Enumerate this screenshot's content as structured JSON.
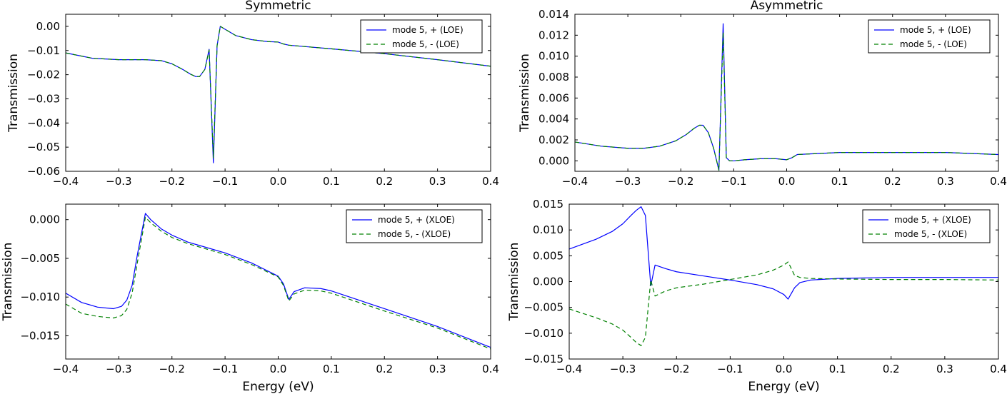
{
  "colors": {
    "plus": "#0000ff",
    "minus": "#008000",
    "axes": "#000000",
    "background": "#ffffff"
  },
  "chart_data": [
    {
      "id": "top-left",
      "type": "line",
      "title": "Symmetric",
      "xlabel": "",
      "ylabel": "Transmission",
      "xlim": [
        -0.4,
        0.4
      ],
      "ylim": [
        -0.06,
        0.005
      ],
      "xticks": [
        -0.4,
        -0.3,
        -0.2,
        -0.1,
        0.0,
        0.1,
        0.2,
        0.3,
        0.4
      ],
      "xtick_labels": [
        "−0.4",
        "−0.3",
        "−0.2",
        "−0.1",
        "0.0",
        "0.1",
        "0.2",
        "0.3",
        "0.4"
      ],
      "yticks": [
        -0.06,
        -0.05,
        -0.04,
        -0.03,
        -0.02,
        -0.01,
        0.0
      ],
      "ytick_labels": [
        "−0.06",
        "−0.05",
        "−0.04",
        "−0.03",
        "−0.02",
        "−0.01",
        "0.00"
      ],
      "grid": false,
      "legend_position": "top-right",
      "series": [
        {
          "name": "mode 5, + (LOE)",
          "style": "solid",
          "color": "#0000ff",
          "x": [
            -0.4,
            -0.35,
            -0.3,
            -0.25,
            -0.22,
            -0.2,
            -0.18,
            -0.165,
            -0.155,
            -0.148,
            -0.138,
            -0.13,
            -0.122,
            -0.115,
            -0.109,
            -0.1,
            -0.08,
            -0.05,
            -0.02,
            0.0,
            0.01,
            0.02,
            0.1,
            0.2,
            0.3,
            0.4
          ],
          "y": [
            -0.011,
            -0.0132,
            -0.0138,
            -0.0138,
            -0.0142,
            -0.0155,
            -0.0178,
            -0.0198,
            -0.0208,
            -0.0208,
            -0.0178,
            -0.0095,
            -0.0565,
            -0.008,
            0.0,
            -0.0012,
            -0.0038,
            -0.0055,
            -0.0063,
            -0.0065,
            -0.0073,
            -0.0078,
            -0.0093,
            -0.0113,
            -0.0138,
            -0.0165
          ]
        },
        {
          "name": "mode 5, - (LOE)",
          "style": "dashed",
          "color": "#008000",
          "x": [
            -0.4,
            -0.35,
            -0.3,
            -0.25,
            -0.22,
            -0.2,
            -0.18,
            -0.165,
            -0.155,
            -0.148,
            -0.138,
            -0.13,
            -0.122,
            -0.115,
            -0.109,
            -0.1,
            -0.08,
            -0.05,
            -0.02,
            0.0,
            0.01,
            0.02,
            0.1,
            0.2,
            0.3,
            0.4
          ],
          "y": [
            -0.011,
            -0.0132,
            -0.0138,
            -0.0138,
            -0.0142,
            -0.0155,
            -0.0178,
            -0.0198,
            -0.0208,
            -0.0208,
            -0.0178,
            -0.0098,
            -0.0545,
            -0.008,
            0.0,
            -0.0012,
            -0.0038,
            -0.0055,
            -0.0063,
            -0.0065,
            -0.0073,
            -0.0078,
            -0.0093,
            -0.0113,
            -0.0138,
            -0.0165
          ]
        }
      ]
    },
    {
      "id": "top-right",
      "type": "line",
      "title": "Asymmetric",
      "xlabel": "",
      "ylabel": "Transmission",
      "xlim": [
        -0.4,
        0.4
      ],
      "ylim": [
        -0.001,
        0.014
      ],
      "xticks": [
        -0.4,
        -0.3,
        -0.2,
        -0.1,
        0.0,
        0.1,
        0.2,
        0.3,
        0.4
      ],
      "xtick_labels": [
        "−0.4",
        "−0.3",
        "−0.2",
        "−0.1",
        "0.0",
        "0.1",
        "0.2",
        "0.3",
        "0.4"
      ],
      "yticks": [
        0.0,
        0.002,
        0.004,
        0.006,
        0.008,
        0.01,
        0.012,
        0.014
      ],
      "ytick_labels": [
        "0.000",
        "0.002",
        "0.004",
        "0.006",
        "0.008",
        "0.010",
        "0.012",
        "0.014"
      ],
      "grid": false,
      "legend_position": "top-right",
      "series": [
        {
          "name": "mode 5, + (LOE)",
          "style": "solid",
          "color": "#0000ff",
          "x": [
            -0.4,
            -0.35,
            -0.3,
            -0.27,
            -0.24,
            -0.21,
            -0.19,
            -0.175,
            -0.165,
            -0.158,
            -0.148,
            -0.138,
            -0.128,
            -0.12,
            -0.114,
            -0.108,
            -0.1,
            -0.08,
            -0.05,
            -0.02,
            0.0,
            0.01,
            0.02,
            0.1,
            0.2,
            0.3,
            0.4
          ],
          "y": [
            0.0018,
            0.0014,
            0.0012,
            0.0012,
            0.0014,
            0.0019,
            0.0025,
            0.0031,
            0.0034,
            0.0034,
            0.0027,
            0.0012,
            -0.0009,
            0.0131,
            0.0003,
            0.0,
            0.0,
            0.0001,
            0.0002,
            0.0002,
            0.0001,
            0.0003,
            0.0006,
            0.0008,
            0.0008,
            0.0008,
            0.0006
          ]
        },
        {
          "name": "mode 5, - (LOE)",
          "style": "dashed",
          "color": "#008000",
          "x": [
            -0.4,
            -0.35,
            -0.3,
            -0.27,
            -0.24,
            -0.21,
            -0.19,
            -0.175,
            -0.165,
            -0.158,
            -0.148,
            -0.138,
            -0.128,
            -0.12,
            -0.114,
            -0.108,
            -0.1,
            -0.08,
            -0.05,
            -0.02,
            0.0,
            0.01,
            0.02,
            0.1,
            0.2,
            0.3,
            0.4
          ],
          "y": [
            0.0018,
            0.0014,
            0.0012,
            0.0012,
            0.0014,
            0.0019,
            0.0025,
            0.0031,
            0.0034,
            0.0034,
            0.0027,
            0.0012,
            -0.0009,
            0.0123,
            0.0003,
            0.0,
            0.0,
            0.0001,
            0.0002,
            0.0002,
            0.0001,
            0.0003,
            0.0006,
            0.0008,
            0.0008,
            0.0008,
            0.0006
          ]
        }
      ]
    },
    {
      "id": "bottom-left",
      "type": "line",
      "title": "",
      "xlabel": "Energy (eV)",
      "ylabel": "Transmission",
      "xlim": [
        -0.4,
        0.4
      ],
      "ylim": [
        -0.018,
        0.002
      ],
      "xticks": [
        -0.4,
        -0.3,
        -0.2,
        -0.1,
        0.0,
        0.1,
        0.2,
        0.3,
        0.4
      ],
      "xtick_labels": [
        "−0.4",
        "−0.3",
        "−0.2",
        "−0.1",
        "0.0",
        "0.1",
        "0.2",
        "0.3",
        "0.4"
      ],
      "yticks": [
        -0.015,
        -0.01,
        -0.005,
        0.0
      ],
      "ytick_labels": [
        "−0.015",
        "−0.010",
        "−0.005",
        "0.000"
      ],
      "grid": false,
      "legend_position": "top-right",
      "series": [
        {
          "name": "mode 5, + (XLOE)",
          "style": "solid",
          "color": "#0000ff",
          "x": [
            -0.4,
            -0.37,
            -0.34,
            -0.31,
            -0.295,
            -0.285,
            -0.275,
            -0.265,
            -0.25,
            -0.24,
            -0.22,
            -0.2,
            -0.17,
            -0.15,
            -0.1,
            -0.05,
            0.0,
            0.01,
            0.02,
            0.03,
            0.05,
            0.08,
            0.1,
            0.2,
            0.3,
            0.4
          ],
          "y": [
            -0.0095,
            -0.0107,
            -0.0113,
            -0.0115,
            -0.0112,
            -0.0104,
            -0.0085,
            -0.0045,
            0.0008,
            0.0,
            -0.0012,
            -0.002,
            -0.0029,
            -0.0033,
            -0.0043,
            -0.0056,
            -0.0073,
            -0.0083,
            -0.0103,
            -0.0093,
            -0.0088,
            -0.0089,
            -0.0092,
            -0.0115,
            -0.0138,
            -0.0165
          ]
        },
        {
          "name": "mode 5, - (XLOE)",
          "style": "dashed",
          "color": "#008000",
          "x": [
            -0.4,
            -0.37,
            -0.34,
            -0.31,
            -0.295,
            -0.285,
            -0.275,
            -0.265,
            -0.25,
            -0.24,
            -0.22,
            -0.2,
            -0.17,
            -0.15,
            -0.1,
            -0.05,
            0.0,
            0.01,
            0.02,
            0.03,
            0.05,
            0.08,
            0.1,
            0.2,
            0.3,
            0.4
          ],
          "y": [
            -0.0109,
            -0.0121,
            -0.0125,
            -0.0127,
            -0.0124,
            -0.0116,
            -0.0095,
            -0.0055,
            0.0003,
            -0.0004,
            -0.0015,
            -0.0023,
            -0.0031,
            -0.0035,
            -0.0045,
            -0.0058,
            -0.0074,
            -0.0085,
            -0.0105,
            -0.0096,
            -0.0091,
            -0.0092,
            -0.0095,
            -0.0118,
            -0.014,
            -0.0167
          ]
        }
      ]
    },
    {
      "id": "bottom-right",
      "type": "line",
      "title": "",
      "xlabel": "Energy (eV)",
      "ylabel": "Transmission",
      "xlim": [
        -0.4,
        0.4
      ],
      "ylim": [
        -0.015,
        0.015
      ],
      "xticks": [
        -0.4,
        -0.3,
        -0.2,
        -0.1,
        0.0,
        0.1,
        0.2,
        0.3,
        0.4
      ],
      "xtick_labels": [
        "−0.4",
        "−0.3",
        "−0.2",
        "−0.1",
        "0.0",
        "0.1",
        "0.2",
        "0.3",
        "0.4"
      ],
      "yticks": [
        -0.015,
        -0.01,
        -0.005,
        0.0,
        0.005,
        0.01,
        0.015
      ],
      "ytick_labels": [
        "−0.015",
        "−0.010",
        "−0.005",
        "0.000",
        "0.005",
        "0.010",
        "0.015"
      ],
      "grid": false,
      "legend_position": "top-right",
      "series": [
        {
          "name": "mode 5, + (XLOE)",
          "style": "solid",
          "color": "#0000ff",
          "x": [
            -0.4,
            -0.35,
            -0.32,
            -0.3,
            -0.285,
            -0.275,
            -0.266,
            -0.258,
            -0.248,
            -0.24,
            -0.22,
            -0.2,
            -0.15,
            -0.1,
            -0.05,
            -0.02,
            0.0,
            0.008,
            0.02,
            0.03,
            0.05,
            0.1,
            0.2,
            0.3,
            0.4
          ],
          "y": [
            0.0063,
            0.0082,
            0.0097,
            0.0112,
            0.0128,
            0.0138,
            0.0145,
            0.0128,
            -0.0008,
            0.0032,
            0.0025,
            0.0019,
            0.0011,
            0.0003,
            -0.0006,
            -0.0014,
            -0.0025,
            -0.0034,
            -0.0012,
            -0.0002,
            0.0003,
            0.0006,
            0.0008,
            0.0008,
            0.0008
          ]
        },
        {
          "name": "mode 5, - (XLOE)",
          "style": "dashed",
          "color": "#008000",
          "x": [
            -0.4,
            -0.35,
            -0.32,
            -0.3,
            -0.285,
            -0.275,
            -0.266,
            -0.258,
            -0.248,
            -0.24,
            -0.22,
            -0.2,
            -0.15,
            -0.1,
            -0.05,
            -0.02,
            0.0,
            0.008,
            0.02,
            0.03,
            0.05,
            0.1,
            0.2,
            0.3,
            0.4
          ],
          "y": [
            -0.0053,
            -0.007,
            -0.0082,
            -0.0094,
            -0.0108,
            -0.0118,
            -0.0124,
            -0.0108,
            0.0003,
            -0.0028,
            -0.0018,
            -0.0012,
            -0.0005,
            0.0004,
            0.0013,
            0.0022,
            0.0032,
            0.0038,
            0.0012,
            0.0008,
            0.0006,
            0.0005,
            0.0004,
            0.0004,
            0.0003
          ]
        }
      ]
    }
  ]
}
